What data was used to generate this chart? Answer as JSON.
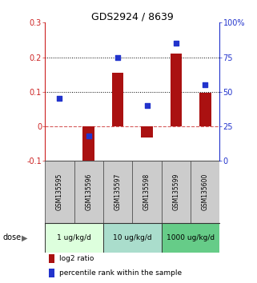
{
  "title": "GDS2924 / 8639",
  "samples": [
    "GSM135595",
    "GSM135596",
    "GSM135597",
    "GSM135598",
    "GSM135599",
    "GSM135600"
  ],
  "log2_ratio": [
    0.0,
    -0.13,
    0.155,
    -0.032,
    0.21,
    0.097
  ],
  "percentile_rank": [
    45,
    18,
    75,
    40,
    85,
    55
  ],
  "ylim_left": [
    -0.1,
    0.3
  ],
  "ylim_right": [
    0,
    100
  ],
  "yticks_left": [
    -0.1,
    0.0,
    0.1,
    0.2,
    0.3
  ],
  "yticks_right": [
    0,
    25,
    50,
    75,
    100
  ],
  "ytick_labels_left": [
    "-0.1",
    "0",
    "0.1",
    "0.2",
    "0.3"
  ],
  "ytick_labels_right": [
    "0",
    "25",
    "50",
    "75",
    "100%"
  ],
  "hlines_dotted": [
    0.1,
    0.2
  ],
  "hline_dashed_color": "#cc3333",
  "bar_color": "#aa1111",
  "dot_color": "#2233cc",
  "dose_groups": [
    {
      "label": "1 ug/kg/d",
      "indices": [
        0,
        1
      ],
      "color": "#ddffdd"
    },
    {
      "label": "10 ug/kg/d",
      "indices": [
        2,
        3
      ],
      "color": "#aaeebb"
    },
    {
      "label": "1000 ug/kg/d",
      "indices": [
        4,
        5
      ],
      "color": "#55cc77"
    }
  ],
  "sample_box_color": "#cccccc",
  "legend_bar_label": "log2 ratio",
  "legend_dot_label": "percentile rank within the sample",
  "dose_label": "dose",
  "left_axis_color": "#cc2222",
  "right_axis_color": "#2233cc",
  "bar_width": 0.4
}
